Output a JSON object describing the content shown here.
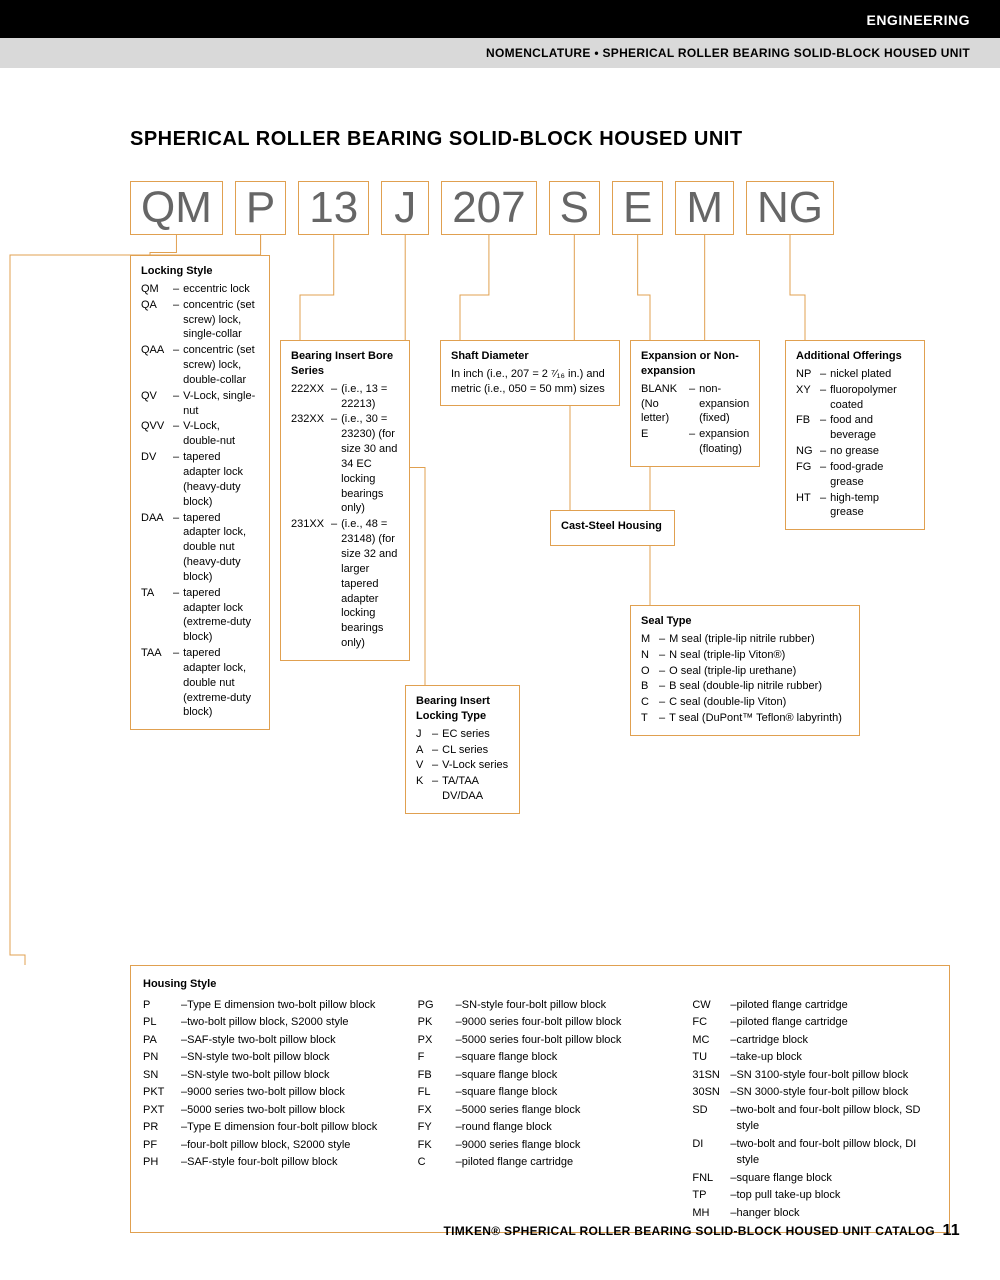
{
  "header": {
    "section": "ENGINEERING",
    "subtitle": "NOMENCLATURE • SPHERICAL ROLLER BEARING SOLID-BLOCK HOUSED UNIT"
  },
  "title": "SPHERICAL ROLLER BEARING SOLID-BLOCK HOUSED UNIT",
  "codes": [
    "QM",
    "P",
    "13",
    "J",
    "207",
    "S",
    "E",
    "M",
    "NG"
  ],
  "boxes": {
    "locking": {
      "hdr": "Locking Style",
      "items": [
        {
          "c": "QM",
          "d": "eccentric lock"
        },
        {
          "c": "QA",
          "d": "concentric (set screw) lock, single-collar"
        },
        {
          "c": "QAA",
          "d": "concentric (set screw) lock, double-collar"
        },
        {
          "c": "QV",
          "d": "V-Lock, single-nut"
        },
        {
          "c": "QVV",
          "d": "V-Lock, double-nut"
        },
        {
          "c": "DV",
          "d": "tapered adapter lock (heavy-duty block)"
        },
        {
          "c": "DAA",
          "d": "tapered adapter lock, double nut (heavy-duty block)"
        },
        {
          "c": "TA",
          "d": "tapered adapter lock (extreme-duty block)"
        },
        {
          "c": "TAA",
          "d": "tapered adapter lock, double nut (extreme-duty block)"
        }
      ]
    },
    "bore": {
      "hdr": "Bearing Insert Bore Series",
      "items": [
        {
          "c": "222XX",
          "d": "(i.e., 13 = 22213)"
        },
        {
          "c": "232XX",
          "d": "(i.e., 30 = 23230) (for size 30 and 34 EC locking bearings only)"
        },
        {
          "c": "231XX",
          "d": "(i.e., 48 = 23148) (for size 32 and larger tapered adapter locking bearings only)"
        }
      ]
    },
    "locktype": {
      "hdr": "Bearing Insert Locking Type",
      "items": [
        {
          "c": "J",
          "d": "EC series"
        },
        {
          "c": "A",
          "d": "CL series"
        },
        {
          "c": "V",
          "d": "V-Lock series"
        },
        {
          "c": "K",
          "d": "TA/TAA DV/DAA"
        }
      ]
    },
    "shaft": {
      "hdr": "Shaft Diameter",
      "text": "In inch (i.e., 207 = 2 ⁷⁄₁₆ in.) and metric (i.e., 050 = 50 mm) sizes"
    },
    "cast": {
      "hdr": "Cast-Steel Housing"
    },
    "expansion": {
      "hdr": "Expansion or Non-expansion",
      "items": [
        {
          "c": "BLANK (No letter)",
          "d": "non-expansion (fixed)"
        },
        {
          "c": "E",
          "d": "expansion (floating)"
        }
      ]
    },
    "seal": {
      "hdr": "Seal Type",
      "items": [
        {
          "c": "M",
          "d": "M seal (triple-lip nitrile rubber)"
        },
        {
          "c": "N",
          "d": "N seal (triple-lip Viton®)"
        },
        {
          "c": "O",
          "d": "O seal (triple-lip urethane)"
        },
        {
          "c": "B",
          "d": "B seal (double-lip nitrile rubber)"
        },
        {
          "c": "C",
          "d": "C seal (double-lip Viton)"
        },
        {
          "c": "T",
          "d": "T seal (DuPont™ Teflon® labyrinth)"
        }
      ]
    },
    "additional": {
      "hdr": "Additional Offerings",
      "items": [
        {
          "c": "NP",
          "d": "nickel plated"
        },
        {
          "c": "XY",
          "d": "fluoropolymer coated"
        },
        {
          "c": "FB",
          "d": "food and beverage"
        },
        {
          "c": "NG",
          "d": "no grease"
        },
        {
          "c": "FG",
          "d": "food-grade grease"
        },
        {
          "c": "HT",
          "d": "high-temp grease"
        }
      ]
    }
  },
  "housing": {
    "hdr": "Housing Style",
    "col1": [
      {
        "c": "P",
        "d": "Type E dimension two-bolt pillow block"
      },
      {
        "c": "PL",
        "d": "two-bolt pillow block, S2000 style"
      },
      {
        "c": "PA",
        "d": "SAF-style two-bolt pillow block"
      },
      {
        "c": "PN",
        "d": "SN-style two-bolt pillow block"
      },
      {
        "c": "SN",
        "d": "SN-style two-bolt pillow block"
      },
      {
        "c": "PKT",
        "d": "9000 series two-bolt pillow block"
      },
      {
        "c": "PXT",
        "d": "5000 series two-bolt pillow block"
      },
      {
        "c": "PR",
        "d": "Type E dimension four-bolt pillow block"
      },
      {
        "c": "PF",
        "d": "four-bolt pillow block, S2000 style"
      },
      {
        "c": "PH",
        "d": "SAF-style four-bolt pillow block"
      }
    ],
    "col2": [
      {
        "c": "PG",
        "d": "SN-style four-bolt pillow block"
      },
      {
        "c": "PK",
        "d": "9000 series four-bolt pillow block"
      },
      {
        "c": "PX",
        "d": "5000 series four-bolt pillow block"
      },
      {
        "c": "F",
        "d": "square flange block"
      },
      {
        "c": "FB",
        "d": "square flange block"
      },
      {
        "c": "FL",
        "d": "square flange block"
      },
      {
        "c": "FX",
        "d": "5000 series flange block"
      },
      {
        "c": "FY",
        "d": "round flange block"
      },
      {
        "c": "FK",
        "d": "9000 series flange block"
      },
      {
        "c": "C",
        "d": "piloted flange cartridge"
      }
    ],
    "col3": [
      {
        "c": "CW",
        "d": "piloted flange cartridge"
      },
      {
        "c": "FC",
        "d": "piloted flange cartridge"
      },
      {
        "c": "MC",
        "d": "cartridge block"
      },
      {
        "c": "TU",
        "d": "take-up block"
      },
      {
        "c": "31SN",
        "d": "SN 3100-style four-bolt pillow block"
      },
      {
        "c": "30SN",
        "d": "SN 3000-style four-bolt pillow block"
      },
      {
        "c": "SD",
        "d": "two-bolt and four-bolt pillow block, SD style"
      },
      {
        "c": "DI",
        "d": "two-bolt and four-bolt pillow block, DI style"
      },
      {
        "c": "FNL",
        "d": "square flange block"
      },
      {
        "c": "TP",
        "d": "top pull take-up block"
      },
      {
        "c": "MH",
        "d": "hanger block"
      }
    ]
  },
  "footer": {
    "text": "TIMKEN® SPHERICAL ROLLER BEARING SOLID-BLOCK HOUSED UNIT CATALOG",
    "page": "11"
  }
}
